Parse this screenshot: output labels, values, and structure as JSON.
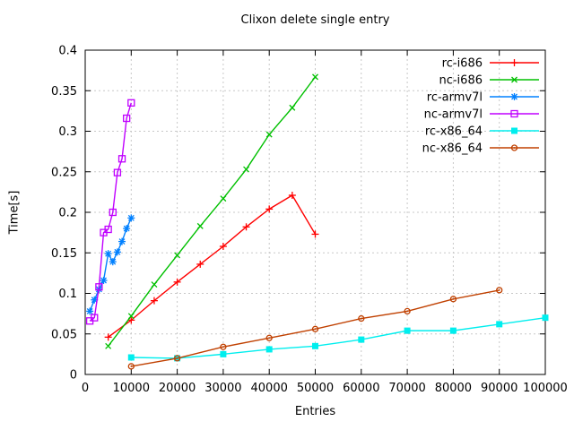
{
  "title": "Clixon delete single entry",
  "chart_data": {
    "type": "line",
    "title": "Clixon delete single entry",
    "xlabel": "Entries",
    "ylabel": "Time[s]",
    "xlim": [
      0,
      100000
    ],
    "ylim": [
      0,
      0.4
    ],
    "grid": true,
    "legend_position": "top-right-inside",
    "background": "#ffffff",
    "grid_color": "#c8c8c8",
    "xticks": [
      0,
      10000,
      20000,
      30000,
      40000,
      50000,
      60000,
      70000,
      80000,
      90000,
      100000
    ],
    "xtick_labels": [
      "0",
      "10000",
      "20000",
      "30000",
      "40000",
      "50000",
      "60000",
      "70000",
      "80000",
      "90000",
      "100000"
    ],
    "yticks": [
      0,
      0.05,
      0.1,
      0.15,
      0.2,
      0.25,
      0.3,
      0.35,
      0.4
    ],
    "ytick_labels": [
      "0",
      "0.05",
      "0.1",
      "0.15",
      "0.2",
      "0.25",
      "0.3",
      "0.35",
      "0.4"
    ],
    "series": [
      {
        "name": "rc-i686",
        "color": "#ff0000",
        "marker": "plus",
        "x": [
          5000,
          10000,
          15000,
          20000,
          25000,
          30000,
          35000,
          40000,
          45000,
          50000
        ],
        "y": [
          0.046,
          0.067,
          0.091,
          0.114,
          0.136,
          0.158,
          0.182,
          0.204,
          0.221,
          0.173
        ]
      },
      {
        "name": "nc-i686",
        "color": "#00c000",
        "marker": "cross",
        "x": [
          5000,
          10000,
          15000,
          20000,
          25000,
          30000,
          35000,
          40000,
          45000,
          50000
        ],
        "y": [
          0.035,
          0.072,
          0.111,
          0.147,
          0.183,
          0.217,
          0.253,
          0.296,
          0.329,
          0.367
        ]
      },
      {
        "name": "rc-armv7l",
        "color": "#0080ff",
        "marker": "asterisk",
        "x": [
          1000,
          2000,
          3000,
          4000,
          5000,
          6000,
          7000,
          8000,
          9000,
          10000
        ],
        "y": [
          0.078,
          0.092,
          0.105,
          0.116,
          0.149,
          0.139,
          0.151,
          0.164,
          0.18,
          0.193
        ]
      },
      {
        "name": "nc-armv7l",
        "color": "#c000ff",
        "marker": "square-open",
        "x": [
          1000,
          2000,
          3000,
          4000,
          5000,
          6000,
          7000,
          8000,
          9000,
          10000
        ],
        "y": [
          0.066,
          0.07,
          0.108,
          0.175,
          0.179,
          0.2,
          0.249,
          0.266,
          0.316,
          0.335
        ]
      },
      {
        "name": "rc-x86_64",
        "color": "#00eeee",
        "marker": "square-filled",
        "x": [
          10000,
          20000,
          30000,
          40000,
          50000,
          60000,
          70000,
          80000,
          90000,
          100000
        ],
        "y": [
          0.021,
          0.02,
          0.025,
          0.031,
          0.035,
          0.043,
          0.054,
          0.054,
          0.062,
          0.07
        ]
      },
      {
        "name": "nc-x86_64",
        "color": "#c04000",
        "marker": "circle-open",
        "x": [
          10000,
          20000,
          30000,
          40000,
          50000,
          60000,
          70000,
          80000,
          90000
        ],
        "y": [
          0.01,
          0.02,
          0.034,
          0.045,
          0.056,
          0.069,
          0.078,
          0.093,
          0.104
        ]
      }
    ]
  }
}
